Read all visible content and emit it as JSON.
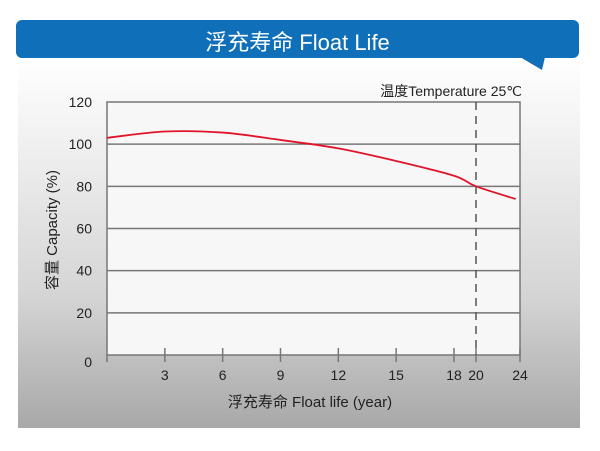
{
  "banner": {
    "title": "浮充寿命 Float Life",
    "color": "#0f6fb8"
  },
  "chart_data": {
    "type": "line",
    "title": "浮充寿命 Float Life",
    "annotation": "温度Temperature 25℃",
    "xlabel": "浮充寿命  Float life (year)",
    "ylabel": "容量  Capacity (%)",
    "xticks": [
      "3",
      "6",
      "9",
      "12",
      "15",
      "18",
      "20",
      "24"
    ],
    "yticks": [
      "0",
      "20",
      "40",
      "60",
      "80",
      "100",
      "120"
    ],
    "ylim": [
      0,
      120
    ],
    "xlim": [
      0,
      24
    ],
    "grid": true,
    "reference_line": {
      "x": 20,
      "style": "dashed"
    },
    "series": [
      {
        "color": "#e0152b",
        "x": [
          0,
          3,
          6,
          9,
          12,
          15,
          18,
          20,
          23.6
        ],
        "y": [
          103,
          106,
          105.5,
          102,
          98,
          92,
          85,
          80,
          74
        ]
      }
    ]
  }
}
